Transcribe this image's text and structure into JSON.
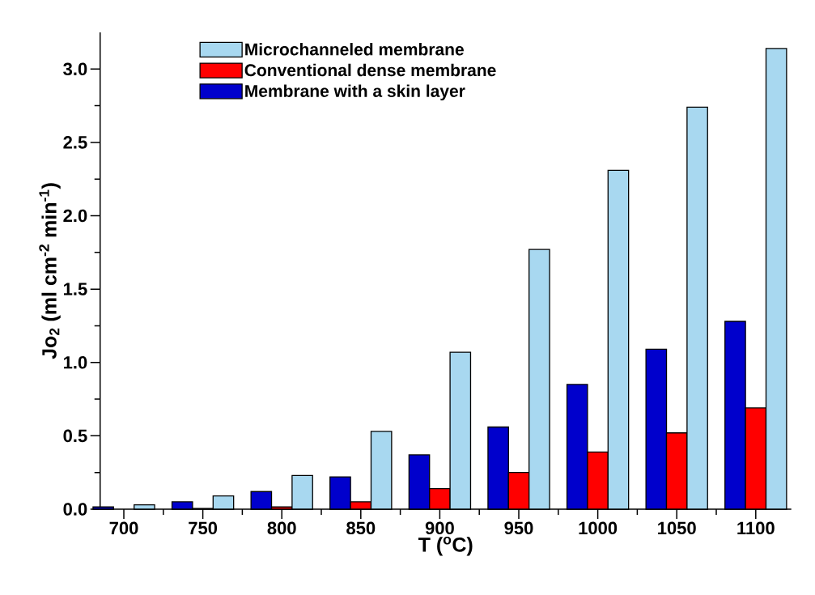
{
  "chart_data": {
    "type": "bar",
    "xlabel": "T ($^{o}$C)",
    "ylabel": "Jo$_{2}$ (ml cm$^{-2}$ min$^{-1}$)",
    "categories": [
      "700",
      "750",
      "800",
      "850",
      "900",
      "950",
      "1000",
      "1050",
      "1100"
    ],
    "series": [
      {
        "name": "Membrane with a skin layer",
        "color": "#0000cc",
        "values": [
          0.015,
          0.05,
          0.12,
          0.22,
          0.37,
          0.56,
          0.85,
          1.09,
          1.28
        ]
      },
      {
        "name": "Conventional dense membrane",
        "color": "#ff0000",
        "values": [
          null,
          0.005,
          0.015,
          0.05,
          0.14,
          0.25,
          0.39,
          0.52,
          0.69
        ]
      },
      {
        "name": "Microchanneled membrane",
        "color": "#a8d8f0",
        "values": [
          0.03,
          0.09,
          0.23,
          0.53,
          1.07,
          1.77,
          2.31,
          2.74,
          3.14
        ]
      }
    ],
    "ylim": [
      0,
      3.25
    ],
    "yticks": [
      {
        "value": 0,
        "label": "0.0"
      },
      0.5,
      {
        "value": 1,
        "label": "1.0"
      },
      1.5,
      {
        "value": 2,
        "label": "2.0"
      },
      2.5,
      {
        "value": 3,
        "label": "3.0"
      }
    ],
    "legend": "top left"
  }
}
